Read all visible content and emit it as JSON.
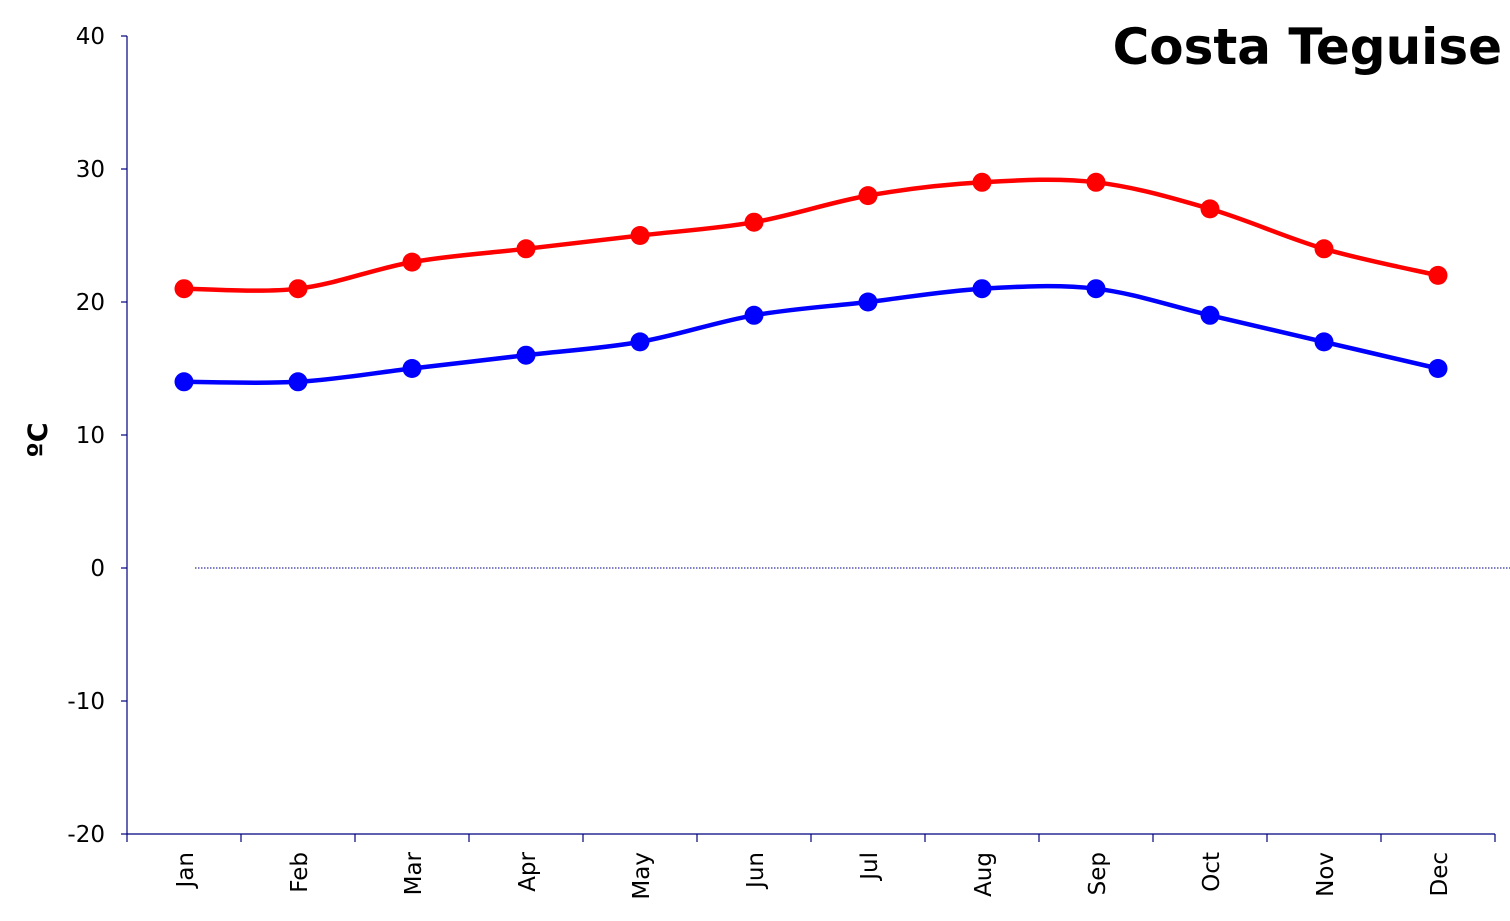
{
  "chart_data": {
    "type": "line",
    "title": "Costa Teguise",
    "xlabel": "",
    "ylabel": "ºC",
    "categories": [
      "Jan",
      "Feb",
      "Mar",
      "Apr",
      "May",
      "Jun",
      "Jul",
      "Aug",
      "Sep",
      "Oct",
      "Nov",
      "Dec"
    ],
    "yticks": [
      -20,
      -10,
      0,
      10,
      20,
      30,
      40
    ],
    "ylim": [
      -20,
      40
    ],
    "grid": false,
    "legend": "none",
    "zero_line": true,
    "series": [
      {
        "values": [
          21,
          21,
          23,
          24,
          25,
          26,
          28,
          29,
          29,
          27,
          24,
          22
        ],
        "color": "#ff0000"
      },
      {
        "values": [
          14,
          14,
          15,
          16,
          17,
          19,
          20,
          21,
          21,
          19,
          17,
          15
        ],
        "color": "#0000ff"
      }
    ]
  }
}
